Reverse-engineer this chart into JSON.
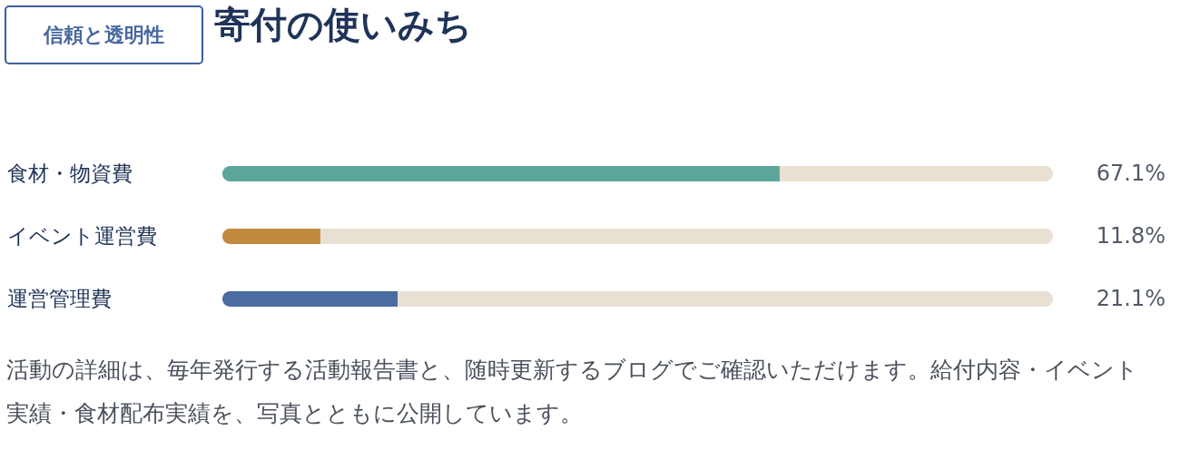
{
  "chart_data": {
    "type": "bar",
    "orientation": "horizontal",
    "title": "寄付の使いみち",
    "subtitle": "信頼と透明性",
    "categories": [
      "食材・物資費",
      "イベント運営費",
      "運営管理費"
    ],
    "values": [
      67.1,
      11.8,
      21.1
    ],
    "colors": [
      "#5ca59b",
      "#c08a3f",
      "#4a6ca1"
    ],
    "value_labels": [
      "67.1%",
      "11.8%",
      "21.1%"
    ],
    "xlim": [
      0,
      100
    ],
    "tick_labels": "y",
    "annotations": [
      "活動の詳細は、毎年発行する活動報告書と、随時更新するブログでご確認いただけます。給付内容・イベント実績・食材配布実績を、写真とともに公開しています。"
    ]
  }
}
